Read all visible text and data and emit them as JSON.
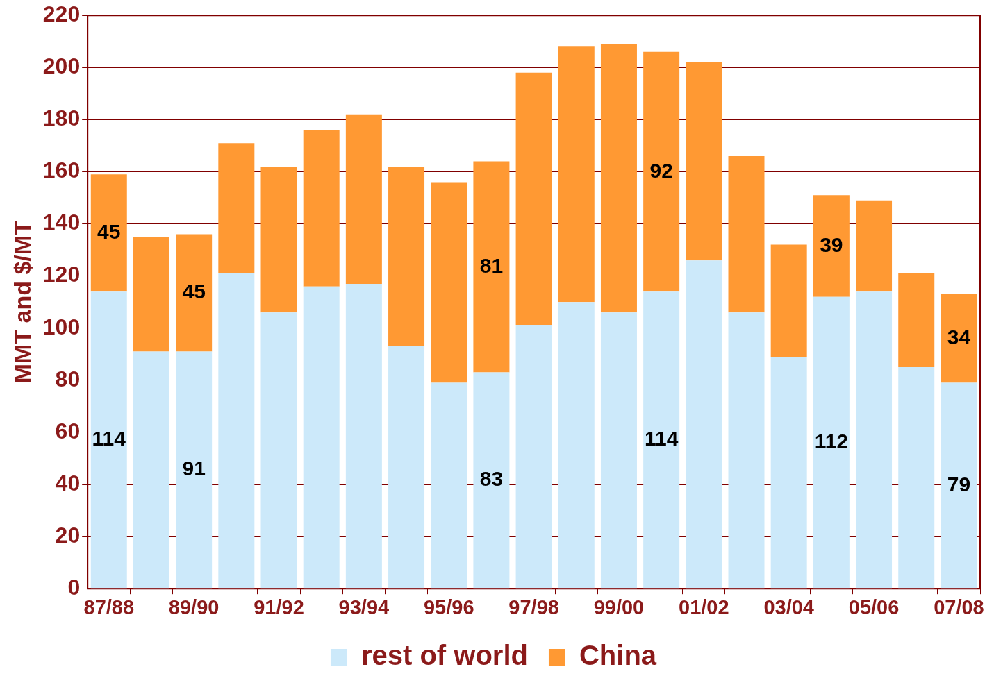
{
  "chart_data": {
    "type": "bar",
    "stacked": true,
    "ylabel": "MMT and $/MT",
    "categories": [
      "87/88",
      null,
      "89/90",
      null,
      "91/92",
      null,
      "93/94",
      null,
      "95/96",
      null,
      "97/98",
      null,
      "99/00",
      null,
      "01/02",
      null,
      "03/04",
      null,
      "05/06",
      null,
      "07/08"
    ],
    "series": [
      {
        "name": "rest of world",
        "color": "#cce9fa",
        "values": [
          114,
          91,
          91,
          121,
          106,
          116,
          117,
          93,
          79,
          83,
          101,
          110,
          106,
          114,
          126,
          106,
          89,
          112,
          114,
          85,
          79
        ],
        "value_labels": [
          "114",
          null,
          "91",
          null,
          null,
          null,
          null,
          null,
          null,
          "83",
          null,
          null,
          null,
          "114",
          null,
          null,
          null,
          "112",
          null,
          null,
          "79"
        ]
      },
      {
        "name": "China",
        "color": "#ff9933",
        "values": [
          45,
          44,
          45,
          50,
          56,
          60,
          65,
          69,
          77,
          81,
          97,
          98,
          103,
          92,
          76,
          60,
          43,
          39,
          35,
          36,
          34
        ],
        "value_labels": [
          "45",
          null,
          "45",
          null,
          null,
          null,
          null,
          null,
          null,
          "81",
          null,
          null,
          null,
          "92",
          null,
          null,
          null,
          "39",
          null,
          null,
          "34"
        ]
      }
    ],
    "ylim": [
      0,
      220
    ],
    "yticks": [
      0,
      20,
      40,
      60,
      80,
      100,
      120,
      140,
      160,
      180,
      200,
      220
    ],
    "grid": "y",
    "legend": "bottom"
  }
}
